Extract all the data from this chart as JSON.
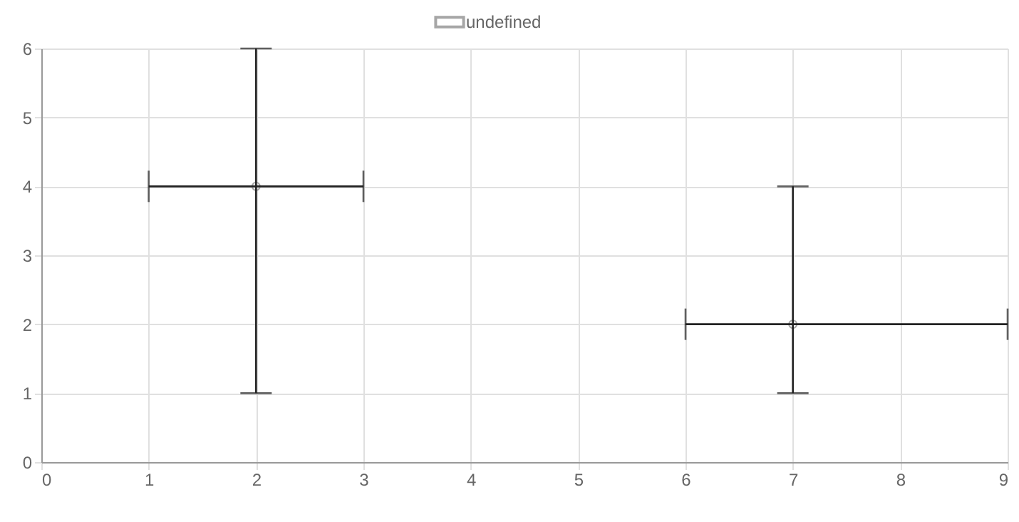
{
  "chart_data": {
    "type": "scatter",
    "x": [
      2,
      7
    ],
    "series": [
      {
        "name": "undefined",
        "color": "#a6a6a6",
        "values": [
          4,
          2
        ],
        "errors": [
          [
            1,
            6
          ],
          [
            1,
            4
          ]
        ],
        "xerrors": [
          [
            1,
            3
          ],
          [
            6,
            9
          ]
        ]
      }
    ],
    "xlim": [
      0,
      9
    ],
    "xticks": [
      0,
      1,
      2,
      3,
      4,
      5,
      6,
      7,
      8,
      9
    ],
    "ylim": [
      0,
      6
    ],
    "yticks": [
      0,
      1,
      2,
      3,
      4,
      5,
      6
    ],
    "grid": true,
    "legend": "top",
    "marker": "circle"
  }
}
